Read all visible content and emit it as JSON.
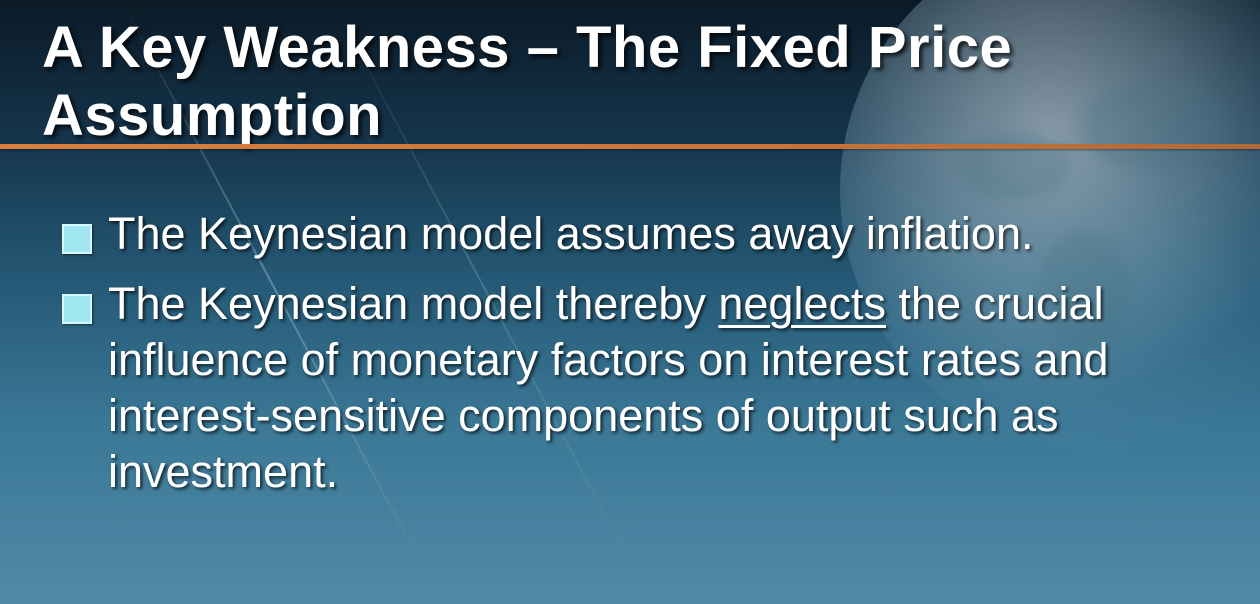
{
  "slide": {
    "title": "A Key Weakness – The Fixed Price Assumption",
    "bullets": [
      {
        "text": "The Keynesian model assumes away inflation."
      },
      {
        "before": "The Keynesian model thereby ",
        "emphasis": "neglects",
        "after": " the crucial influence of monetary factors on interest rates and interest-sensitive components of output such as investment."
      }
    ]
  },
  "colors": {
    "accent_rule": "#d9803f",
    "bullet_marker": "#9fe6f0",
    "text": "#ffffff"
  }
}
